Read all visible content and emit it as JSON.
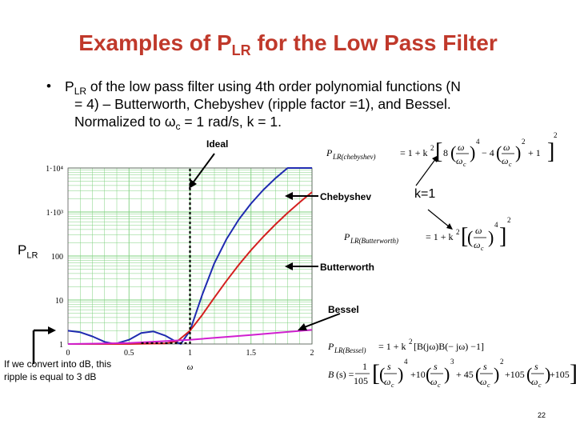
{
  "title": {
    "main": "Examples of P",
    "sub": "LR",
    "rest": " for the Low Pass Filter"
  },
  "bullet": {
    "dot": "•",
    "line1_a": "P",
    "line1_sub": "LR",
    "line1_b": " of the low pass filter using 4th order polynomial functions (N",
    "line2": "= 4) – Butterworth, Chebyshev (ripple factor =1), and Bessel.",
    "line3_a": "Normalized to ω",
    "line3_sub": "c",
    "line3_b": " = 1 rad/s, k = 1."
  },
  "labels": {
    "ideal": "Ideal",
    "chebyshev": "Chebyshev",
    "butterworth": "Butterworth",
    "bessel": "Bessel",
    "k": "k=1",
    "plr_main": "P",
    "plr_sub": "LR"
  },
  "note": "If we convert into dB, this ripple is equal to 3 dB",
  "page_number": "22",
  "formulas": {
    "chebyshev": "P_LR(chebyshev) = 1 + k²[8(ω/ω_c)⁴ − 4(ω/ω_c)² + 1]²",
    "butterworth": "P_LR(Butterworth) = 1 + k²[(ω/ω_c)⁴]²",
    "bessel_plr": "P_LR(Bessel) = 1 + k²[B(jω)B(−jω) − 1]",
    "bessel_b": "B(s) = 1/105 [(s/ω_c)⁴ + 10(s/ω_c)³ + 45(s/ω_c)² + 105(s/ω_c) + 105]"
  },
  "colors": {
    "title": "#c0392b",
    "chebyshev": "#1f2bb0",
    "butterworth": "#d42020",
    "bessel": "#d020d0",
    "grid": "#7fd07f",
    "axis": "#000000"
  },
  "chart_data": {
    "type": "line",
    "scale_y": "log",
    "xlabel": "ω",
    "ylabel": "",
    "xlim": [
      0,
      2
    ],
    "ylim": [
      1,
      10000
    ],
    "x_ticks": [
      "0",
      "0.5",
      "1",
      "1.5",
      "2"
    ],
    "y_ticks": [
      "1",
      "10",
      "100",
      "1·10³",
      "1·10⁴"
    ],
    "grid": true,
    "series": [
      {
        "name": "Chebyshev",
        "x": [
          0,
          0.1,
          0.2,
          0.3,
          0.383,
          0.5,
          0.6,
          0.7,
          0.8,
          0.9,
          0.924,
          1.0,
          1.1,
          1.2,
          1.3,
          1.4,
          1.5,
          1.6,
          1.7,
          1.8,
          1.9,
          2.0
        ],
        "y": [
          2,
          1.85,
          1.49,
          1.12,
          1,
          1.25,
          1.78,
          1.93,
          1.54,
          1.07,
          1,
          2,
          13.2,
          68.8,
          245,
          676,
          1557,
          3161,
          5860,
          10000,
          10000,
          10000
        ]
      },
      {
        "name": "Butterworth",
        "x": [
          0,
          0.5,
          0.8,
          0.9,
          1.0,
          1.1,
          1.2,
          1.3,
          1.4,
          1.5,
          1.6,
          1.7,
          1.8,
          1.9,
          2.0
        ],
        "y": [
          1,
          1,
          1.03,
          1.18,
          2,
          4.59,
          11.4,
          27.6,
          63.2,
          136,
          273,
          523,
          955,
          1675,
          2832
        ]
      },
      {
        "name": "Bessel",
        "x": [
          0,
          0.5,
          1.0,
          1.5,
          2.0
        ],
        "y": [
          1,
          1.05,
          1.25,
          1.6,
          2.1
        ]
      },
      {
        "name": "Ideal",
        "x": [
          1,
          1
        ],
        "y": [
          1,
          10000
        ]
      }
    ]
  }
}
